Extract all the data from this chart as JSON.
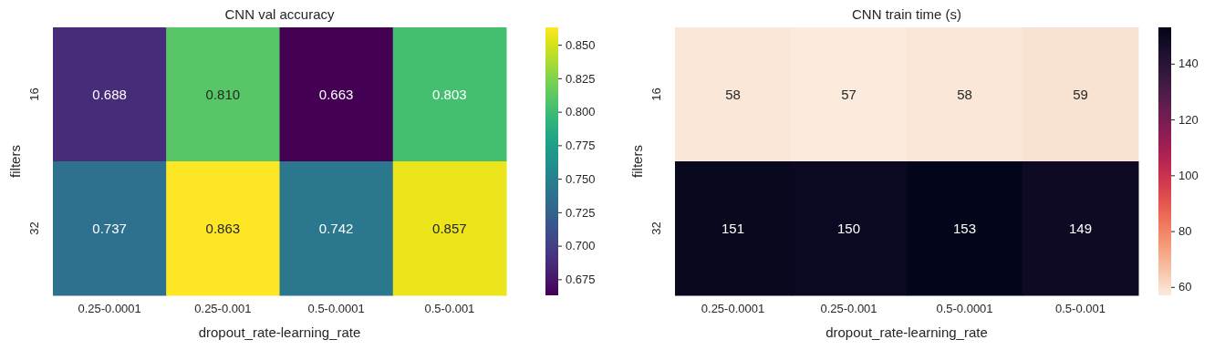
{
  "chart_data": [
    {
      "type": "heatmap",
      "title": "CNN val accuracy",
      "xlabel": "dropout_rate-learning_rate",
      "ylabel": "filters",
      "categories": [
        "0.25-0.0001",
        "0.25-0.001",
        "0.5-0.0001",
        "0.5-0.001"
      ],
      "y_categories": [
        "16",
        "32"
      ],
      "cells": [
        [
          0.688,
          0.81,
          0.663,
          0.803
        ],
        [
          0.737,
          0.863,
          0.742,
          0.857
        ]
      ],
      "cell_labels": [
        [
          "0.688",
          "0.810",
          "0.663",
          "0.803"
        ],
        [
          "0.737",
          "0.863",
          "0.742",
          "0.857"
        ]
      ],
      "clim": [
        0.663,
        0.863
      ],
      "cticks": [
        {
          "value": 0.675,
          "label": "0.675"
        },
        {
          "value": 0.7,
          "label": "0.700"
        },
        {
          "value": 0.725,
          "label": "0.725"
        },
        {
          "value": 0.75,
          "label": "0.750"
        },
        {
          "value": 0.775,
          "label": "0.775"
        },
        {
          "value": 0.8,
          "label": "0.800"
        },
        {
          "value": 0.825,
          "label": "0.825"
        },
        {
          "value": 0.85,
          "label": "0.850"
        }
      ]
    },
    {
      "type": "heatmap",
      "title": "CNN train time (s)",
      "xlabel": "dropout_rate-learning_rate",
      "ylabel": "filters",
      "categories": [
        "0.25-0.0001",
        "0.25-0.001",
        "0.5-0.0001",
        "0.5-0.001"
      ],
      "y_categories": [
        "16",
        "32"
      ],
      "cells": [
        [
          58,
          57,
          58,
          59
        ],
        [
          151,
          150,
          153,
          149
        ]
      ],
      "data_labels": true,
      "clim": [
        57,
        153
      ],
      "cticks": [
        60,
        80,
        100,
        120,
        140
      ]
    }
  ]
}
